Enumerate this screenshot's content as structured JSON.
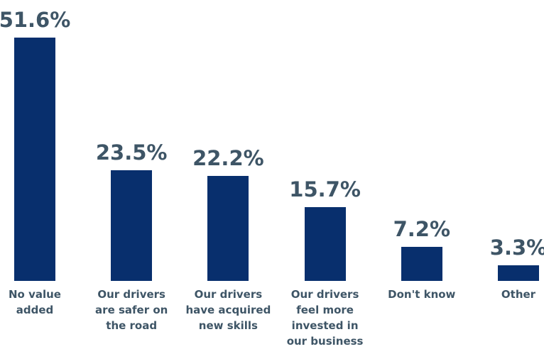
{
  "chart_data": {
    "type": "bar",
    "categories": [
      "No value\nadded",
      "Our drivers\nare safer on\nthe road",
      "Our drivers\nhave acquired\nnew skills",
      "Our drivers\nfeel more\ninvested in\nour business",
      "Don't know",
      "Other"
    ],
    "values": [
      51.6,
      23.5,
      22.2,
      15.7,
      7.2,
      3.3
    ],
    "value_labels": [
      "51.6%",
      "23.5%",
      "22.2%",
      "15.7%",
      "7.2%",
      "3.3%"
    ],
    "color": "#082f6d"
  }
}
